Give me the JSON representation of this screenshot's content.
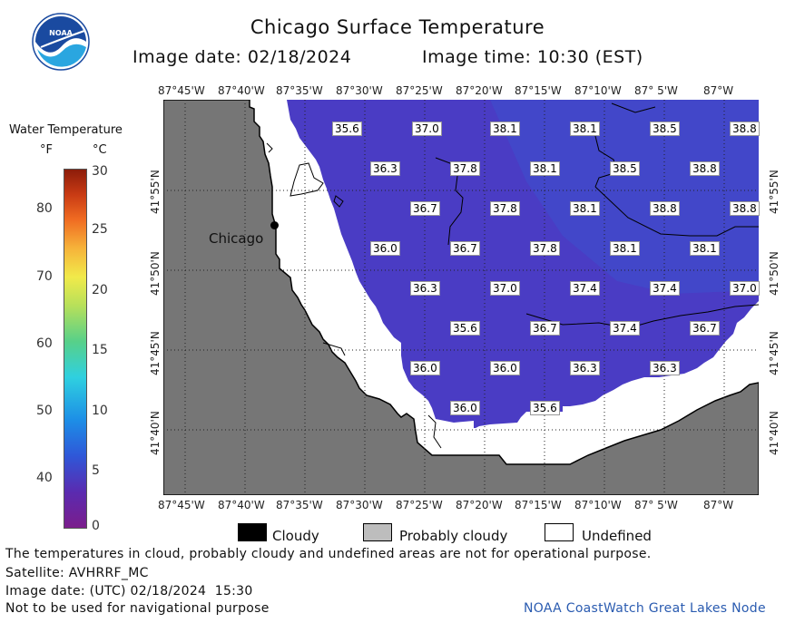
{
  "header": {
    "title": "Chicago Surface Temperature",
    "image_date": "Image date: 02/18/2024",
    "image_time": "Image time: 10:30 (EST)"
  },
  "logo": {
    "text": "NOAA",
    "icon": "noaa-logo-icon",
    "colors": {
      "blue": "#1a4aa0",
      "light": "#2aa6e0"
    }
  },
  "legend": {
    "title": "Water Temperature",
    "unit_f": "°F",
    "unit_c": "°C",
    "f_ticks": [
      "80",
      "70",
      "60",
      "50",
      "40"
    ],
    "c_ticks": [
      "30",
      "25",
      "20",
      "15",
      "10",
      "5",
      "0"
    ]
  },
  "map": {
    "lon_labels": [
      "87°45'W",
      "87°40'W",
      "87°35'W",
      "87°30'W",
      "87°25'W",
      "87°20'W",
      "87°15'W",
      "87°10'W",
      "87° 5'W",
      "87°W"
    ],
    "lat_labels": [
      "41°55'N",
      "41°50'N",
      "41°45'N",
      "41°40'N"
    ],
    "city": "Chicago",
    "colors": {
      "land": "#767676",
      "undefined": "#ffffff",
      "water": "#4a3cc4"
    },
    "temps": [
      "35.6",
      "37.0",
      "38.1",
      "38.1",
      "38.5",
      "38.8",
      "36.3",
      "37.8",
      "38.1",
      "38.5",
      "38.8",
      "36.7",
      "37.8",
      "38.1",
      "38.8",
      "38.8",
      "36.0",
      "36.7",
      "37.8",
      "38.1",
      "38.1",
      "36.3",
      "37.0",
      "37.4",
      "37.4",
      "37.0",
      "35.6",
      "36.7",
      "37.4",
      "36.7",
      "36.0",
      "36.0",
      "36.3",
      "36.3",
      "36.0",
      "35.6"
    ]
  },
  "key": {
    "cloudy": "Cloudy",
    "probably_cloudy": "Probably cloudy",
    "undefined": "Undefined",
    "colors": {
      "cloudy": "#000000",
      "probably_cloudy": "#bdbdbd",
      "undefined": "#ffffff"
    }
  },
  "footer": {
    "line1": "The temperatures in cloud, probably cloudy and undefined areas are not for operational purpose.",
    "line2": "Satellite: AVHRRF_MC",
    "line3": "Image date: (UTC) 02/18/2024  15:30",
    "line4": "Not to be used for navigational purpose",
    "node": "NOAA CoastWatch Great Lakes Node"
  }
}
